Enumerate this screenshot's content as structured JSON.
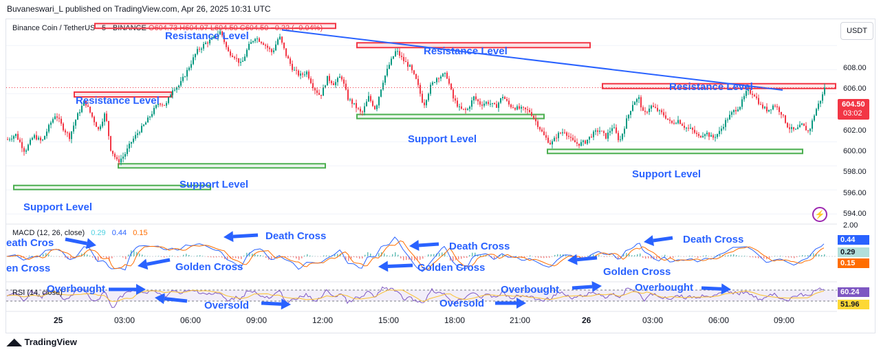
{
  "publisher_line": "Buvaneswari_L published on TradingView.com, Apr 26, 2025 10:31 UTC",
  "symbol": {
    "name": "Binance Coin / TetherUS · 5 · BINANCE",
    "open": "O604.73",
    "high": "H604.97",
    "low": "L604.50",
    "close": "C604.50",
    "change": "−0.22 (−0.04%)"
  },
  "currency": "USDT",
  "price_axis": {
    "ticks": [
      "608.00",
      "606.00",
      "604.00",
      "602.00",
      "600.00",
      "598.00",
      "596.00",
      "594.00"
    ],
    "current_price": "604.50",
    "countdown": "03:02"
  },
  "time_axis": {
    "ticks": [
      "25",
      "03:00",
      "06:00",
      "09:00",
      "12:00",
      "15:00",
      "18:00",
      "21:00",
      "26",
      "03:00",
      "06:00",
      "09:00"
    ]
  },
  "annotations": {
    "resistance": [
      "Resistance Level",
      "Resistance Level",
      "Resistance Level",
      "Resistance Level"
    ],
    "support": [
      "Support Level",
      "Support Level",
      "Support Level",
      "Support Level"
    ],
    "macd": [
      "eath Cross",
      "en Cross",
      "Death Cross",
      "Golden Cross",
      "Death Cross",
      "Golden Cross",
      "Death Cross",
      "Golden Cross"
    ],
    "rsi": [
      "Overbought",
      "Oversold",
      "Oversold",
      "Overbought",
      "Overbought"
    ]
  },
  "macd": {
    "label": "MACD (12, 26, close)",
    "v1": "0.29",
    "v2": "0.44",
    "v3": "0.15",
    "axis_top": "2.00",
    "badges": [
      "0.44",
      "0.29",
      "0.15"
    ]
  },
  "rsi": {
    "label": "RSI (14, close)",
    "badges": [
      "60.24",
      "51.96"
    ]
  },
  "brand": "TradingView",
  "colors": {
    "up": "#089981",
    "down": "#f23645",
    "resistance_box": "#f23645",
    "support_box": "#4caf50",
    "trendline": "#2962ff",
    "annotation": "#2962ff",
    "macd_line": "#2962ff",
    "signal_line": "#ff6d00",
    "rsi_line": "#7e57c2",
    "rsi_ma": "#fbc02d"
  },
  "chart_data": {
    "type": "candlestick",
    "ylim": [
      593.5,
      609.5
    ],
    "x_ticks": [
      "25",
      "03:00",
      "06:00",
      "09:00",
      "12:00",
      "15:00",
      "18:00",
      "21:00",
      "26",
      "03:00",
      "06:00",
      "09:00"
    ],
    "y_ticks": [
      608,
      606,
      604,
      602,
      600,
      598,
      596,
      594
    ],
    "last_price": 604.5,
    "close_path": [
      [
        0,
        600.2
      ],
      [
        12,
        600.6
      ],
      [
        25,
        599.2
      ],
      [
        38,
        600.5
      ],
      [
        50,
        600.0
      ],
      [
        62,
        601.5
      ],
      [
        70,
        602.3
      ],
      [
        80,
        601.2
      ],
      [
        90,
        600.4
      ],
      [
        100,
        602.0
      ],
      [
        112,
        603.4
      ],
      [
        122,
        602.2
      ],
      [
        132,
        601.0
      ],
      [
        142,
        602.4
      ],
      [
        150,
        599.4
      ],
      [
        160,
        598.3
      ],
      [
        170,
        598.9
      ],
      [
        180,
        600.0
      ],
      [
        190,
        600.8
      ],
      [
        200,
        601.5
      ],
      [
        210,
        602.4
      ],
      [
        220,
        603.3
      ],
      [
        230,
        603.0
      ],
      [
        240,
        604.4
      ],
      [
        250,
        604.7
      ],
      [
        262,
        606.0
      ],
      [
        275,
        607.5
      ],
      [
        288,
        608.2
      ],
      [
        300,
        608.6
      ],
      [
        310,
        609.2
      ],
      [
        320,
        607.5
      ],
      [
        330,
        607.1
      ],
      [
        340,
        606.4
      ],
      [
        350,
        607.9
      ],
      [
        360,
        608.7
      ],
      [
        372,
        608.2
      ],
      [
        385,
        607.4
      ],
      [
        395,
        608.8
      ],
      [
        405,
        607.2
      ],
      [
        415,
        606.0
      ],
      [
        425,
        605.5
      ],
      [
        435,
        605.8
      ],
      [
        445,
        604.5
      ],
      [
        455,
        603.8
      ],
      [
        465,
        605.3
      ],
      [
        475,
        604.8
      ],
      [
        485,
        605.5
      ],
      [
        495,
        603.6
      ],
      [
        505,
        603.0
      ],
      [
        515,
        602.3
      ],
      [
        525,
        603.7
      ],
      [
        535,
        602.7
      ],
      [
        545,
        604.9
      ],
      [
        555,
        606.4
      ],
      [
        565,
        607.6
      ],
      [
        575,
        606.8
      ],
      [
        585,
        606.2
      ],
      [
        595,
        605.0
      ],
      [
        605,
        603.0
      ],
      [
        615,
        604.6
      ],
      [
        625,
        605.4
      ],
      [
        638,
        605.6
      ],
      [
        648,
        603.6
      ],
      [
        658,
        602.7
      ],
      [
        668,
        602.6
      ],
      [
        678,
        603.7
      ],
      [
        688,
        603.1
      ],
      [
        698,
        603.3
      ],
      [
        710,
        602.9
      ],
      [
        720,
        603.8
      ],
      [
        730,
        603.0
      ],
      [
        740,
        602.8
      ],
      [
        750,
        602.7
      ],
      [
        760,
        602.5
      ],
      [
        770,
        601.5
      ],
      [
        780,
        600.5
      ],
      [
        790,
        599.8
      ],
      [
        800,
        600.6
      ],
      [
        810,
        600.9
      ],
      [
        820,
        600.1
      ],
      [
        830,
        599.8
      ],
      [
        840,
        600.0
      ],
      [
        850,
        600.6
      ],
      [
        860,
        601.0
      ],
      [
        870,
        600.4
      ],
      [
        880,
        601.3
      ],
      [
        890,
        600.0
      ],
      [
        900,
        601.8
      ],
      [
        910,
        603.3
      ],
      [
        918,
        603.6
      ],
      [
        925,
        602.2
      ],
      [
        935,
        603.0
      ],
      [
        945,
        602.6
      ],
      [
        955,
        602.2
      ],
      [
        965,
        601.5
      ],
      [
        975,
        601.8
      ],
      [
        985,
        601.2
      ],
      [
        995,
        601.0
      ],
      [
        1005,
        600.4
      ],
      [
        1015,
        600.8
      ],
      [
        1025,
        600.3
      ],
      [
        1035,
        600.8
      ],
      [
        1045,
        601.8
      ],
      [
        1055,
        602.5
      ],
      [
        1065,
        603.0
      ],
      [
        1075,
        604.2
      ],
      [
        1085,
        604.0
      ],
      [
        1095,
        603.0
      ],
      [
        1105,
        602.6
      ],
      [
        1115,
        603.1
      ],
      [
        1125,
        602.4
      ],
      [
        1135,
        601.2
      ],
      [
        1145,
        600.9
      ],
      [
        1155,
        601.4
      ],
      [
        1165,
        600.8
      ],
      [
        1175,
        602.6
      ],
      [
        1182,
        603.5
      ],
      [
        1190,
        604.5
      ]
    ],
    "levels": {
      "resistance": [
        {
          "label": "Resistance Level",
          "from_x": 98,
          "to_x": 240,
          "price": 603.9
        },
        {
          "label": "Resistance Level",
          "from_x": 128,
          "to_x": 478,
          "price": 609.6
        },
        {
          "label": "Resistance Level",
          "from_x": 509,
          "to_x": 848,
          "price": 608.0
        },
        {
          "label": "Resistance Level",
          "from_x": 866,
          "to_x": 1205,
          "price": 604.6
        }
      ],
      "support": [
        {
          "label": "Support Level",
          "from_x": 10,
          "to_x": 296,
          "price": 596.2
        },
        {
          "label": "Support Level",
          "from_x": 162,
          "to_x": 463,
          "price": 598.0
        },
        {
          "label": "Support Level",
          "from_x": 509,
          "to_x": 781,
          "price": 602.1
        },
        {
          "label": "Support Level",
          "from_x": 786,
          "to_x": 1157,
          "price": 599.2
        }
      ]
    },
    "trendline": {
      "from": [
        400,
        609.3
      ],
      "to": [
        1128,
        604.3
      ]
    }
  }
}
